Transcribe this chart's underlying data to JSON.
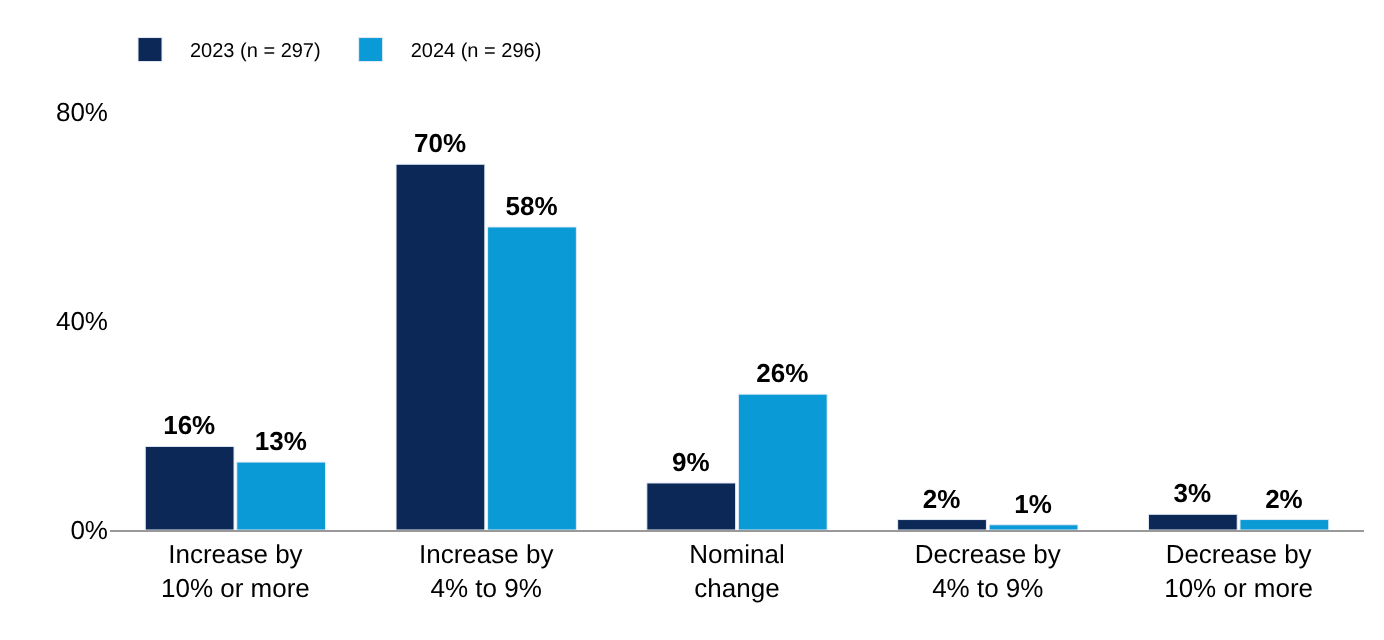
{
  "chart_data": {
    "type": "bar",
    "categories": [
      "Increase by\n10% or more",
      "Increase by\n4% to 9%",
      "Nominal\nchange",
      "Decrease by\n4% to 9%",
      "Decrease by\n10% or more"
    ],
    "series": [
      {
        "name": "2023 (n = 297)",
        "color": "#0c2856",
        "values": [
          16,
          70,
          9,
          2,
          3
        ],
        "value_labels": [
          "16%",
          "70%",
          "9%",
          "2%",
          "3%"
        ]
      },
      {
        "name": "2024 (n = 296)",
        "color": "#0a9ad6",
        "values": [
          13,
          58,
          26,
          1,
          2
        ],
        "value_labels": [
          "13%",
          "58%",
          "26%",
          "1%",
          "2%"
        ]
      }
    ],
    "ylim": [
      0,
      80
    ],
    "yticks": [
      {
        "value": 0,
        "label": "0%"
      },
      {
        "value": 40,
        "label": "40%"
      },
      {
        "value": 80,
        "label": "80%"
      }
    ],
    "legend": "top left"
  }
}
